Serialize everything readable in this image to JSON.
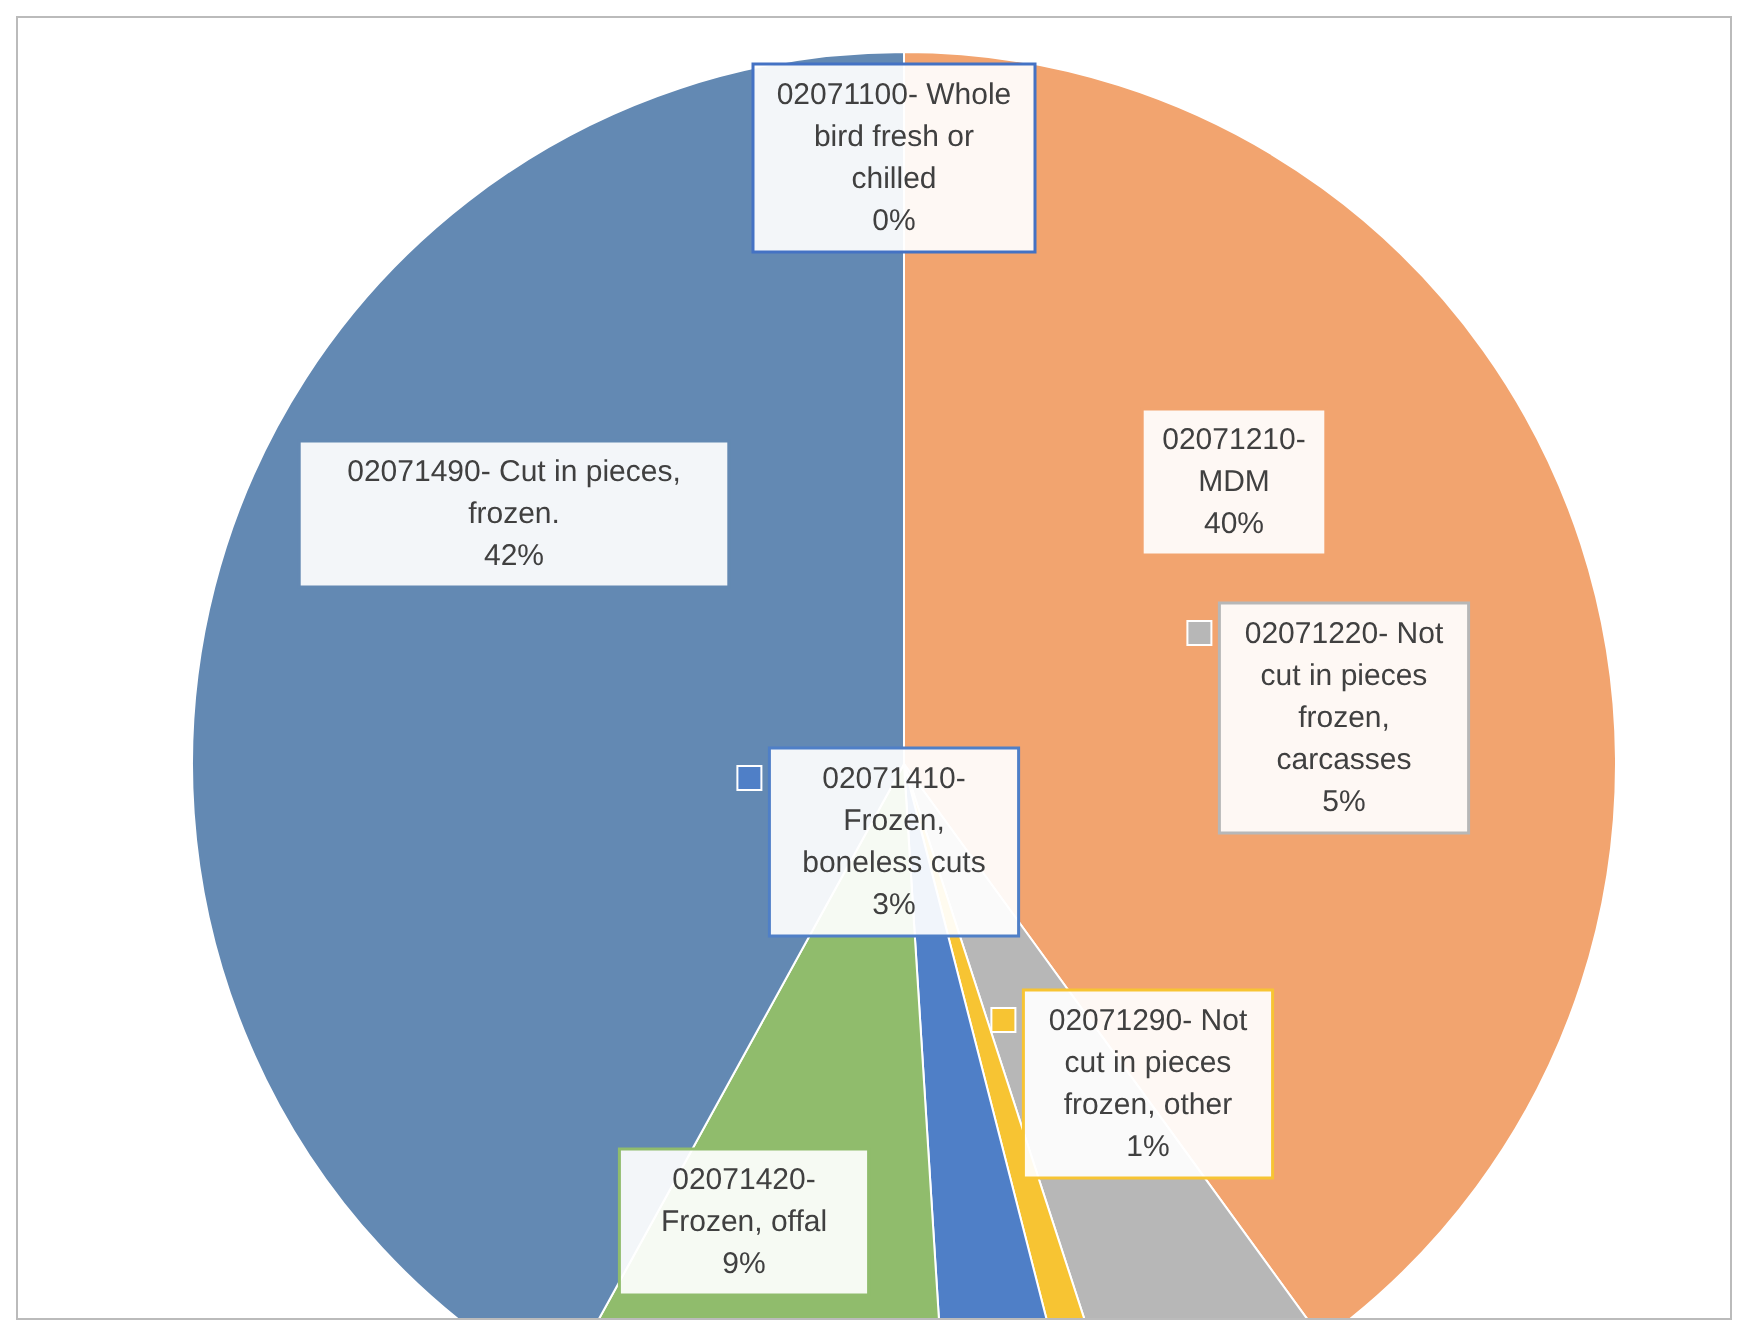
{
  "chart_data": {
    "type": "pie",
    "categories": [
      "02071100- Whole bird fresh or chilled",
      "02071210- MDM",
      "02071220- Not cut in pieces frozen, carcasses",
      "02071290- Not cut in pieces frozen, other",
      "02071410- Frozen, boneless cuts",
      "02071420- Frozen, offal",
      "02071490- Cut in pieces, frozen."
    ],
    "values": [
      0,
      40,
      5,
      1,
      3,
      9,
      42
    ],
    "value_labels": [
      "0%",
      "40%",
      "5%",
      "1%",
      "3%",
      "9%",
      "42%"
    ],
    "colors": [
      "#4472c4",
      "#f2a46f",
      "#b7b7b7",
      "#f7c433",
      "#4f7fc7",
      "#90bc6c",
      "#6389b3"
    ],
    "legend": "right"
  }
}
